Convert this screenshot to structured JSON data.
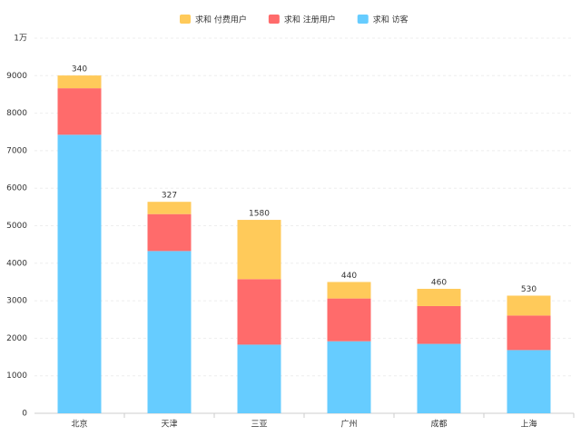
{
  "chart_data": {
    "type": "stacked-bar",
    "categories": [
      "北京",
      "天津",
      "三亚",
      "广州",
      "成都",
      "上海"
    ],
    "series": [
      {
        "name": "求和 付费用户",
        "color": "#ffca5a",
        "values": [
          340,
          327,
          1580,
          440,
          460,
          530
        ]
      },
      {
        "name": "求和 注册用户",
        "color": "#ff6b6b",
        "values": [
          1240,
          985,
          1746,
          1140,
          1008,
          921
        ]
      },
      {
        "name": "求和 访客",
        "color": "#66ccff",
        "values": [
          7425,
          4325,
          1830,
          1920,
          1850,
          1685
        ]
      }
    ],
    "ylim": [
      0,
      10000
    ],
    "yticks": [
      0,
      1000,
      2000,
      3000,
      4000,
      5000,
      6000,
      7000,
      8000,
      9000,
      {
        "value": 10000,
        "label": "1万"
      }
    ],
    "grid": true,
    "legend": "top"
  }
}
